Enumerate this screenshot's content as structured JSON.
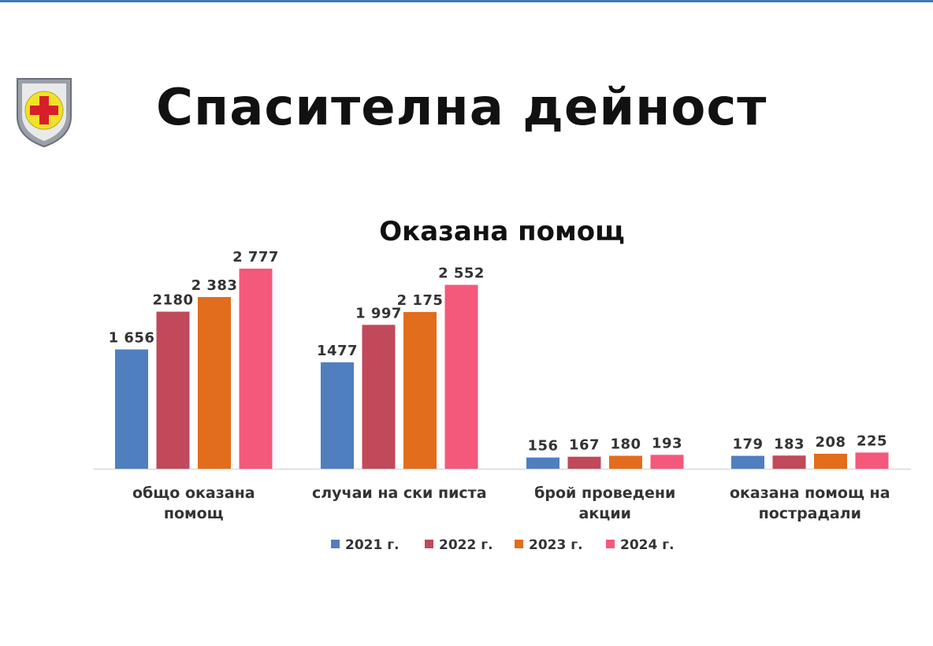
{
  "page": {
    "title": "Спасителна дейност"
  },
  "colors": {
    "2021": "#4f7fbf",
    "2022": "#c0495a",
    "2023": "#e26d1c",
    "2024": "#f4587a",
    "accent_bar": "#3d7bb3"
  },
  "chart_data": {
    "type": "bar",
    "title": "Оказана помощ",
    "categories": [
      [
        "общо оказана",
        "помощ"
      ],
      [
        "случаи на ски писта"
      ],
      [
        "брой проведени",
        "акции"
      ],
      [
        "оказана помощ на",
        "пострадали"
      ]
    ],
    "series": [
      {
        "name": "2021 г.",
        "values": [
          1656,
          1477,
          156,
          179
        ],
        "labels": [
          "1 656",
          "1477",
          "156",
          "179"
        ]
      },
      {
        "name": "2022 г.",
        "values": [
          2180,
          1997,
          167,
          183
        ],
        "labels": [
          "2180",
          "1 997",
          "167",
          "183"
        ]
      },
      {
        "name": "2023 г.",
        "values": [
          2383,
          2175,
          180,
          208
        ],
        "labels": [
          "2 383",
          "2 175",
          "180",
          "208"
        ]
      },
      {
        "name": "2024 г.",
        "values": [
          2777,
          2552,
          193,
          225
        ],
        "labels": [
          "2 777",
          "2 552",
          "193",
          "225"
        ]
      }
    ],
    "legend": "bottom",
    "grid": false
  }
}
